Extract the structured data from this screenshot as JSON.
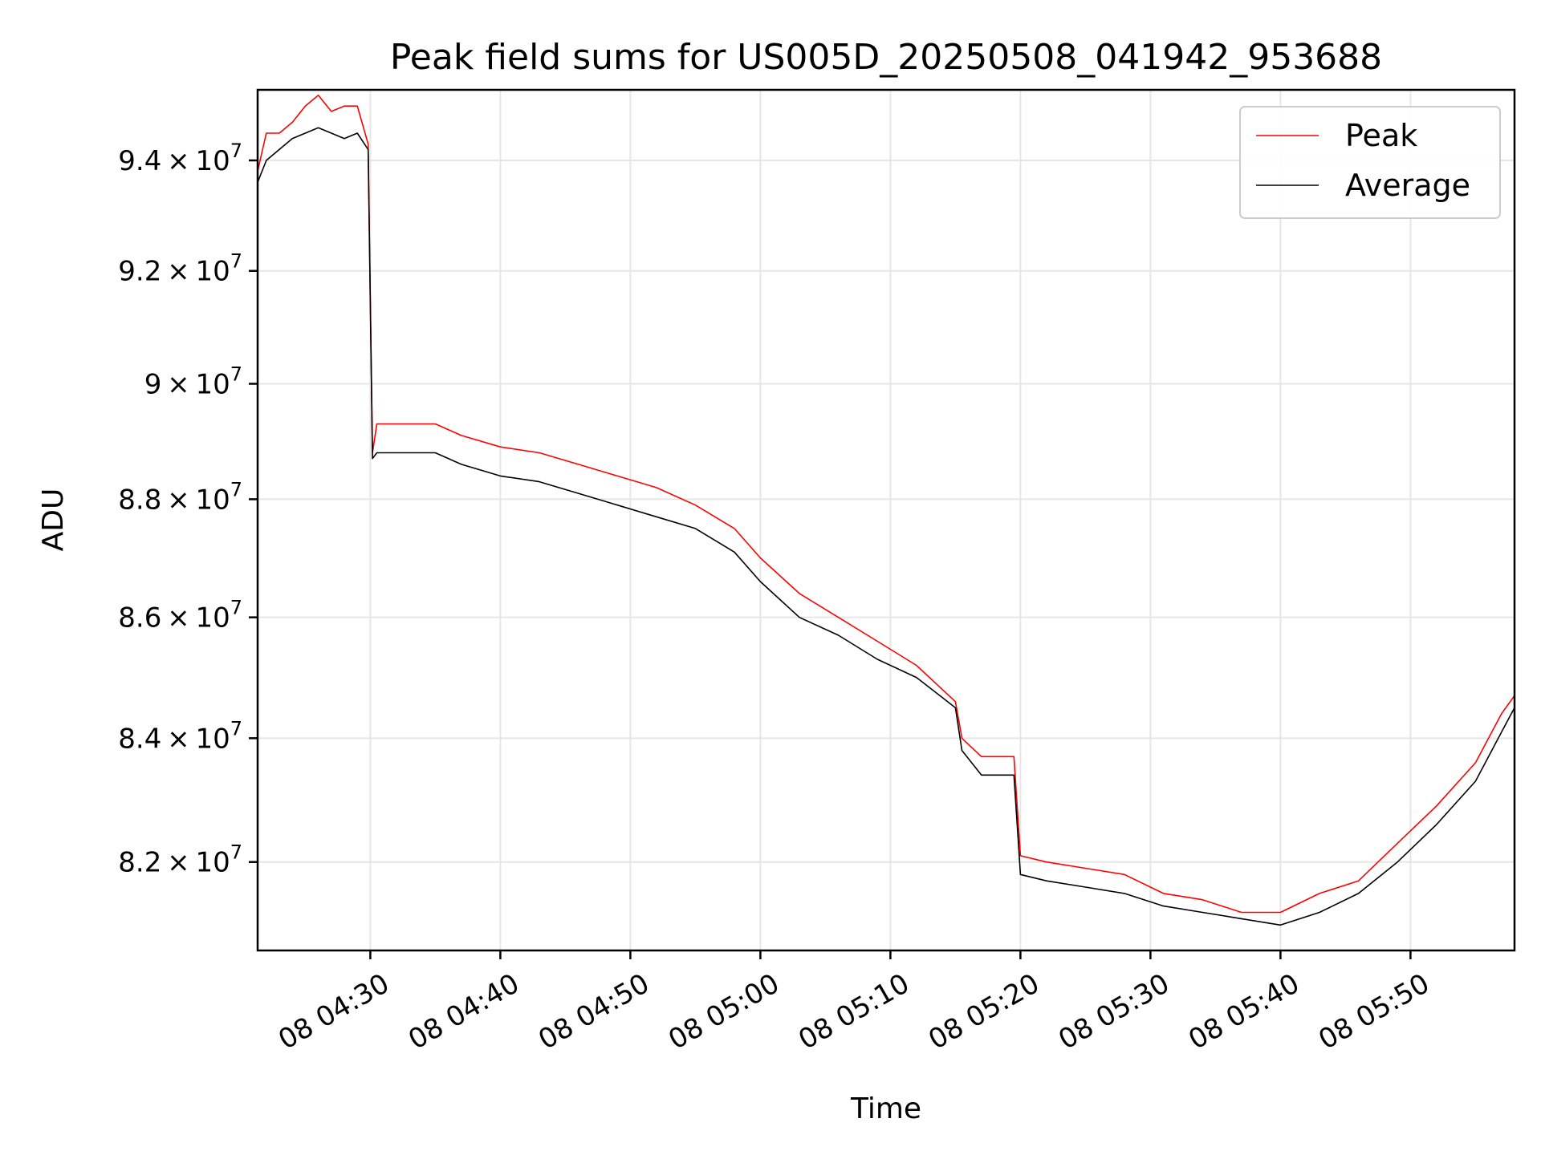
{
  "chart_data": {
    "type": "line",
    "title": "Peak field sums for US005D_20250508_041942_953688",
    "xlabel": "Time",
    "ylabel": "ADU",
    "y_scale": "log",
    "grid": true,
    "legend_position": "top-right",
    "xlim": [
      "2025-05-08T04:21:20",
      "2025-05-08T05:58:00"
    ],
    "ylim": [
      80600000,
      95300000
    ],
    "x_ticks": [
      {
        "time": "2025-05-08T04:30",
        "label": "08 04:30"
      },
      {
        "time": "2025-05-08T04:40",
        "label": "08 04:40"
      },
      {
        "time": "2025-05-08T04:50",
        "label": "08 04:50"
      },
      {
        "time": "2025-05-08T05:00",
        "label": "08 05:00"
      },
      {
        "time": "2025-05-08T05:10",
        "label": "08 05:10"
      },
      {
        "time": "2025-05-08T05:20",
        "label": "08 05:20"
      },
      {
        "time": "2025-05-08T05:30",
        "label": "08 05:30"
      },
      {
        "time": "2025-05-08T05:40",
        "label": "08 05:40"
      },
      {
        "time": "2025-05-08T05:50",
        "label": "08 05:50"
      }
    ],
    "y_ticks": [
      {
        "value": 82000000,
        "mantissa": "8.2",
        "base": "10",
        "exponent": "7"
      },
      {
        "value": 84000000,
        "mantissa": "8.4",
        "base": "10",
        "exponent": "7"
      },
      {
        "value": 86000000,
        "mantissa": "8.6",
        "base": "10",
        "exponent": "7"
      },
      {
        "value": 88000000,
        "mantissa": "8.8",
        "base": "10",
        "exponent": "7"
      },
      {
        "value": 90000000,
        "mantissa": "9",
        "base": "10",
        "exponent": "7"
      },
      {
        "value": 92000000,
        "mantissa": "9.2",
        "base": "10",
        "exponent": "7"
      },
      {
        "value": 94000000,
        "mantissa": "9.4",
        "base": "10",
        "exponent": "7"
      }
    ],
    "series": [
      {
        "name": "Peak",
        "color": "#ff0000",
        "x": [
          "2025-05-08T04:21:20",
          "2025-05-08T04:22:00",
          "2025-05-08T04:23:00",
          "2025-05-08T04:24:00",
          "2025-05-08T04:25:00",
          "2025-05-08T04:26:00",
          "2025-05-08T04:27:00",
          "2025-05-08T04:28:00",
          "2025-05-08T04:29:00",
          "2025-05-08T04:29:50",
          "2025-05-08T04:30:10",
          "2025-05-08T04:30:30",
          "2025-05-08T04:31:00",
          "2025-05-08T04:33:00",
          "2025-05-08T04:35:00",
          "2025-05-08T04:37:00",
          "2025-05-08T04:40:00",
          "2025-05-08T04:43:00",
          "2025-05-08T04:46:00",
          "2025-05-08T04:49:00",
          "2025-05-08T04:52:00",
          "2025-05-08T04:55:00",
          "2025-05-08T04:58:00",
          "2025-05-08T05:00:00",
          "2025-05-08T05:03:00",
          "2025-05-08T05:06:00",
          "2025-05-08T05:09:00",
          "2025-05-08T05:12:00",
          "2025-05-08T05:15:00",
          "2025-05-08T05:15:30",
          "2025-05-08T05:17:00",
          "2025-05-08T05:19:30",
          "2025-05-08T05:20:00",
          "2025-05-08T05:22:00",
          "2025-05-08T05:25:00",
          "2025-05-08T05:28:00",
          "2025-05-08T05:31:00",
          "2025-05-08T05:34:00",
          "2025-05-08T05:37:00",
          "2025-05-08T05:40:00",
          "2025-05-08T05:43:00",
          "2025-05-08T05:46:00",
          "2025-05-08T05:49:00",
          "2025-05-08T05:52:00",
          "2025-05-08T05:55:00",
          "2025-05-08T05:57:00",
          "2025-05-08T05:58:00"
        ],
        "y": [
          93800000,
          94500000,
          94500000,
          94700000,
          95000000,
          95200000,
          94900000,
          95000000,
          95000000,
          94300000,
          88800000,
          89300000,
          89300000,
          89300000,
          89300000,
          89100000,
          88900000,
          88800000,
          88600000,
          88400000,
          88200000,
          87900000,
          87500000,
          87000000,
          86400000,
          86000000,
          85600000,
          85200000,
          84600000,
          84000000,
          83700000,
          83700000,
          82100000,
          82000000,
          81900000,
          81800000,
          81500000,
          81400000,
          81200000,
          81200000,
          81500000,
          81700000,
          82300000,
          82900000,
          83600000,
          84400000,
          84700000
        ]
      },
      {
        "name": "Average",
        "color": "#000000",
        "x": [
          "2025-05-08T04:21:20",
          "2025-05-08T04:22:00",
          "2025-05-08T04:23:00",
          "2025-05-08T04:24:00",
          "2025-05-08T04:25:00",
          "2025-05-08T04:26:00",
          "2025-05-08T04:27:00",
          "2025-05-08T04:28:00",
          "2025-05-08T04:29:00",
          "2025-05-08T04:29:50",
          "2025-05-08T04:30:10",
          "2025-05-08T04:30:30",
          "2025-05-08T04:31:00",
          "2025-05-08T04:33:00",
          "2025-05-08T04:35:00",
          "2025-05-08T04:37:00",
          "2025-05-08T04:40:00",
          "2025-05-08T04:43:00",
          "2025-05-08T04:46:00",
          "2025-05-08T04:49:00",
          "2025-05-08T04:52:00",
          "2025-05-08T04:55:00",
          "2025-05-08T04:58:00",
          "2025-05-08T05:00:00",
          "2025-05-08T05:03:00",
          "2025-05-08T05:06:00",
          "2025-05-08T05:09:00",
          "2025-05-08T05:12:00",
          "2025-05-08T05:15:00",
          "2025-05-08T05:15:30",
          "2025-05-08T05:17:00",
          "2025-05-08T05:19:30",
          "2025-05-08T05:20:00",
          "2025-05-08T05:22:00",
          "2025-05-08T05:25:00",
          "2025-05-08T05:28:00",
          "2025-05-08T05:31:00",
          "2025-05-08T05:34:00",
          "2025-05-08T05:37:00",
          "2025-05-08T05:40:00",
          "2025-05-08T05:43:00",
          "2025-05-08T05:46:00",
          "2025-05-08T05:49:00",
          "2025-05-08T05:52:00",
          "2025-05-08T05:55:00",
          "2025-05-08T05:57:00",
          "2025-05-08T05:58:00"
        ],
        "y": [
          93600000,
          94000000,
          94200000,
          94400000,
          94500000,
          94600000,
          94500000,
          94400000,
          94500000,
          94200000,
          88700000,
          88800000,
          88800000,
          88800000,
          88800000,
          88600000,
          88400000,
          88300000,
          88100000,
          87900000,
          87700000,
          87500000,
          87100000,
          86600000,
          86000000,
          85700000,
          85300000,
          85000000,
          84500000,
          83800000,
          83400000,
          83400000,
          81800000,
          81700000,
          81600000,
          81500000,
          81300000,
          81200000,
          81100000,
          81000000,
          81200000,
          81500000,
          82000000,
          82600000,
          83300000,
          84100000,
          84500000
        ]
      }
    ]
  }
}
